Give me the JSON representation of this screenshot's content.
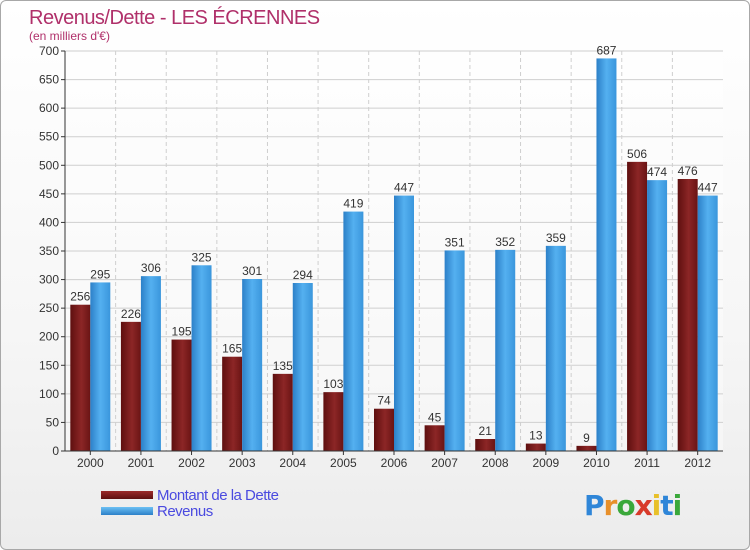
{
  "chart_data": {
    "type": "bar",
    "title": "Revenus/Dette - LES ÉCRENNES",
    "subtitle": "(en milliers d'€)",
    "categories": [
      "2000",
      "2001",
      "2002",
      "2003",
      "2004",
      "2005",
      "2006",
      "2007",
      "2008",
      "2009",
      "2010",
      "2011",
      "2012"
    ],
    "series": [
      {
        "name": "Montant de la Dette",
        "color": "#7a1818",
        "values": [
          256,
          226,
          195,
          165,
          135,
          103,
          74,
          45,
          21,
          13,
          9,
          506,
          476
        ]
      },
      {
        "name": "Revenus",
        "color": "#3d9be0",
        "values": [
          295,
          306,
          325,
          301,
          294,
          419,
          447,
          351,
          352,
          359,
          687,
          474,
          447
        ]
      }
    ],
    "ylim": [
      0,
      700
    ],
    "yticks": [
      0,
      50,
      100,
      150,
      200,
      250,
      300,
      350,
      400,
      450,
      500,
      550,
      600,
      650,
      700
    ],
    "grid": true,
    "legend_position": "bottom-left"
  },
  "logo": {
    "letters": [
      {
        "ch": "P",
        "color": "#2f86d8"
      },
      {
        "ch": "r",
        "color": "#e8902a"
      },
      {
        "ch": "o",
        "color": "#3aa83a"
      },
      {
        "ch": "x",
        "color": "#d83a2a"
      },
      {
        "ch": "i",
        "color": "#e8c02a"
      },
      {
        "ch": "t",
        "color": "#2f86d8"
      },
      {
        "ch": "i",
        "color": "#3aa83a"
      }
    ]
  }
}
